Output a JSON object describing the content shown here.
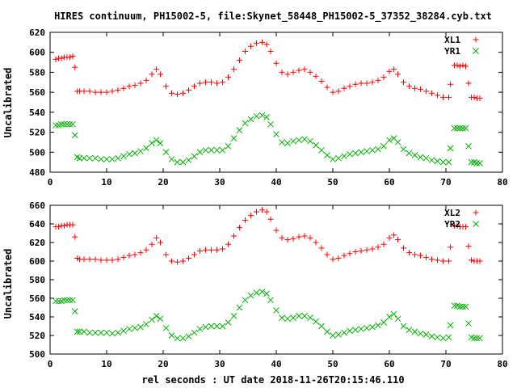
{
  "page_title": "HIRES continuum, PH15002-5, file:Skynet_58448_PH15002-5_37352_38284.cyb.txt",
  "x_axis_label": "rel seconds : UT date 2018-11-26T20:15:46.110",
  "colors": {
    "red": "#ff0000",
    "green": "#00b000",
    "frame": "#000000"
  },
  "chart_data": [
    {
      "type": "scatter",
      "ylabel": "Uncalibrated",
      "xlim": [
        0,
        80
      ],
      "ylim": [
        480,
        620
      ],
      "xticks": [
        0,
        10,
        20,
        30,
        40,
        50,
        60,
        70,
        80
      ],
      "yticks": [
        480,
        500,
        520,
        540,
        560,
        580,
        600,
        620
      ],
      "legend_position": "top-right",
      "series": [
        {
          "name": "XL1",
          "marker": "plus",
          "color": "#ff0000",
          "x": [
            1.0,
            1.5,
            2.0,
            2.5,
            3.0,
            3.5,
            4.0,
            4.4,
            4.8,
            5.2,
            6.0,
            7.0,
            8.0,
            9.0,
            10.0,
            11.0,
            12.0,
            13.0,
            14.0,
            15.0,
            16.0,
            17.0,
            18.0,
            18.8,
            19.5,
            20.5,
            21.5,
            22.5,
            23.5,
            24.5,
            25.5,
            26.5,
            27.5,
            28.5,
            29.5,
            30.5,
            31.5,
            32.5,
            33.5,
            34.5,
            35.5,
            36.5,
            37.5,
            38.3,
            39.0,
            40.0,
            41.0,
            42.0,
            43.0,
            44.0,
            45.0,
            46.0,
            47.0,
            48.0,
            49.0,
            50.0,
            51.0,
            52.0,
            53.0,
            54.0,
            55.0,
            56.0,
            57.0,
            58.0,
            59.0,
            60.0,
            60.8,
            61.5,
            62.5,
            63.5,
            64.5,
            65.5,
            66.5,
            67.5,
            68.5,
            69.5,
            70.5,
            70.8,
            71.5,
            72.0,
            72.5,
            73.0,
            73.5,
            74.0,
            74.5,
            75.0,
            75.5,
            76.0
          ],
          "y": [
            593,
            594,
            594,
            595,
            595,
            595,
            596,
            585,
            561,
            561,
            561,
            561,
            560,
            560,
            560,
            561,
            562,
            564,
            566,
            567,
            569,
            572,
            578,
            583,
            578,
            566,
            559,
            558,
            559,
            562,
            566,
            569,
            570,
            570,
            569,
            570,
            575,
            583,
            592,
            601,
            606,
            609,
            610,
            608,
            601,
            589,
            580,
            578,
            580,
            582,
            583,
            580,
            576,
            571,
            565,
            560,
            561,
            564,
            566,
            568,
            569,
            569,
            570,
            572,
            575,
            581,
            583,
            578,
            570,
            566,
            564,
            563,
            561,
            559,
            557,
            555,
            555,
            568,
            587,
            587,
            586,
            587,
            586,
            569,
            555,
            555,
            554,
            554
          ]
        },
        {
          "name": "YR1",
          "marker": "cross",
          "color": "#00b000",
          "x": [
            1.0,
            1.5,
            2.0,
            2.5,
            3.0,
            3.5,
            4.0,
            4.4,
            4.8,
            5.2,
            6.0,
            7.0,
            8.0,
            9.0,
            10.0,
            11.0,
            12.0,
            13.0,
            14.0,
            15.0,
            16.0,
            17.0,
            18.0,
            18.8,
            19.5,
            20.5,
            21.5,
            22.5,
            23.5,
            24.5,
            25.5,
            26.5,
            27.5,
            28.5,
            29.5,
            30.5,
            31.5,
            32.5,
            33.5,
            34.5,
            35.5,
            36.5,
            37.5,
            38.3,
            39.0,
            40.0,
            41.0,
            42.0,
            43.0,
            44.0,
            45.0,
            46.0,
            47.0,
            48.0,
            49.0,
            50.0,
            51.0,
            52.0,
            53.0,
            54.0,
            55.0,
            56.0,
            57.0,
            58.0,
            59.0,
            60.0,
            60.8,
            61.5,
            62.5,
            63.5,
            64.5,
            65.5,
            66.5,
            67.5,
            68.5,
            69.5,
            70.5,
            70.8,
            71.5,
            72.0,
            72.5,
            73.0,
            73.5,
            74.0,
            74.5,
            75.0,
            75.5,
            76.0
          ],
          "y": [
            527,
            527,
            528,
            528,
            528,
            528,
            528,
            517,
            495,
            494,
            494,
            494,
            494,
            493,
            493,
            493,
            494,
            496,
            498,
            499,
            501,
            504,
            509,
            512,
            509,
            500,
            493,
            490,
            490,
            492,
            496,
            500,
            502,
            502,
            502,
            502,
            506,
            514,
            522,
            529,
            533,
            536,
            537,
            535,
            528,
            518,
            510,
            509,
            511,
            512,
            513,
            511,
            507,
            502,
            497,
            493,
            494,
            496,
            498,
            499,
            500,
            501,
            502,
            503,
            506,
            512,
            514,
            510,
            503,
            499,
            497,
            495,
            494,
            492,
            491,
            490,
            490,
            504,
            524,
            524,
            524,
            524,
            524,
            506,
            490,
            490,
            489,
            489
          ]
        }
      ]
    },
    {
      "type": "scatter",
      "ylabel": "Uncalibrated",
      "xlim": [
        0,
        80
      ],
      "ylim": [
        500,
        660
      ],
      "xticks": [
        0,
        10,
        20,
        30,
        40,
        50,
        60,
        70,
        80
      ],
      "yticks": [
        500,
        520,
        540,
        560,
        580,
        600,
        620,
        640,
        660
      ],
      "legend_position": "top-right",
      "series": [
        {
          "name": "XL2",
          "marker": "plus",
          "color": "#ff0000",
          "x": [
            1.0,
            1.5,
            2.0,
            2.5,
            3.0,
            3.5,
            4.0,
            4.4,
            4.8,
            5.2,
            6.0,
            7.0,
            8.0,
            9.0,
            10.0,
            11.0,
            12.0,
            13.0,
            14.0,
            15.0,
            16.0,
            17.0,
            18.0,
            18.8,
            19.5,
            20.5,
            21.5,
            22.5,
            23.5,
            24.5,
            25.5,
            26.5,
            27.5,
            28.5,
            29.5,
            30.5,
            31.5,
            32.5,
            33.5,
            34.5,
            35.5,
            36.5,
            37.5,
            38.3,
            39.0,
            40.0,
            41.0,
            42.0,
            43.0,
            44.0,
            45.0,
            46.0,
            47.0,
            48.0,
            49.0,
            50.0,
            51.0,
            52.0,
            53.0,
            54.0,
            55.0,
            56.0,
            57.0,
            58.0,
            59.0,
            60.0,
            60.8,
            61.5,
            62.5,
            63.5,
            64.5,
            65.5,
            66.5,
            67.5,
            68.5,
            69.5,
            70.5,
            70.8,
            71.5,
            72.0,
            72.5,
            73.0,
            73.5,
            74.0,
            74.5,
            75.0,
            75.5,
            76.0
          ],
          "y": [
            637,
            637,
            638,
            638,
            639,
            639,
            639,
            626,
            603,
            602,
            602,
            602,
            602,
            601,
            601,
            601,
            602,
            604,
            606,
            607,
            609,
            612,
            618,
            625,
            620,
            607,
            600,
            599,
            600,
            603,
            607,
            611,
            612,
            612,
            612,
            613,
            618,
            627,
            636,
            644,
            649,
            653,
            655,
            653,
            645,
            633,
            625,
            623,
            624,
            626,
            627,
            625,
            620,
            614,
            607,
            602,
            603,
            606,
            608,
            610,
            611,
            612,
            613,
            615,
            618,
            625,
            628,
            623,
            614,
            609,
            607,
            606,
            604,
            602,
            601,
            600,
            600,
            615,
            638,
            638,
            637,
            637,
            637,
            616,
            601,
            600,
            600,
            600
          ]
        },
        {
          "name": "YR2",
          "marker": "cross",
          "color": "#00b000",
          "x": [
            1.0,
            1.5,
            2.0,
            2.5,
            3.0,
            3.5,
            4.0,
            4.4,
            4.8,
            5.2,
            6.0,
            7.0,
            8.0,
            9.0,
            10.0,
            11.0,
            12.0,
            13.0,
            14.0,
            15.0,
            16.0,
            17.0,
            18.0,
            18.8,
            19.5,
            20.5,
            21.5,
            22.5,
            23.5,
            24.5,
            25.5,
            26.5,
            27.5,
            28.5,
            29.5,
            30.5,
            31.5,
            32.5,
            33.5,
            34.5,
            35.5,
            36.5,
            37.5,
            38.3,
            39.0,
            40.0,
            41.0,
            42.0,
            43.0,
            44.0,
            45.0,
            46.0,
            47.0,
            48.0,
            49.0,
            50.0,
            51.0,
            52.0,
            53.0,
            54.0,
            55.0,
            56.0,
            57.0,
            58.0,
            59.0,
            60.0,
            60.8,
            61.5,
            62.5,
            63.5,
            64.5,
            65.5,
            66.5,
            67.5,
            68.5,
            69.5,
            70.5,
            70.8,
            71.5,
            72.0,
            72.5,
            73.0,
            73.5,
            74.0,
            74.5,
            75.0,
            75.5,
            76.0
          ],
          "y": [
            557,
            557,
            557,
            558,
            558,
            558,
            558,
            546,
            524,
            524,
            524,
            523,
            523,
            523,
            523,
            522,
            523,
            525,
            527,
            528,
            529,
            532,
            537,
            541,
            538,
            528,
            520,
            517,
            517,
            519,
            523,
            527,
            529,
            530,
            530,
            530,
            534,
            541,
            550,
            558,
            563,
            566,
            567,
            565,
            558,
            547,
            539,
            538,
            539,
            541,
            541,
            539,
            535,
            530,
            524,
            520,
            521,
            523,
            525,
            526,
            527,
            528,
            529,
            531,
            534,
            540,
            543,
            538,
            530,
            526,
            524,
            522,
            521,
            519,
            518,
            517,
            518,
            531,
            552,
            552,
            551,
            551,
            551,
            533,
            518,
            517,
            517,
            517
          ]
        }
      ]
    }
  ]
}
